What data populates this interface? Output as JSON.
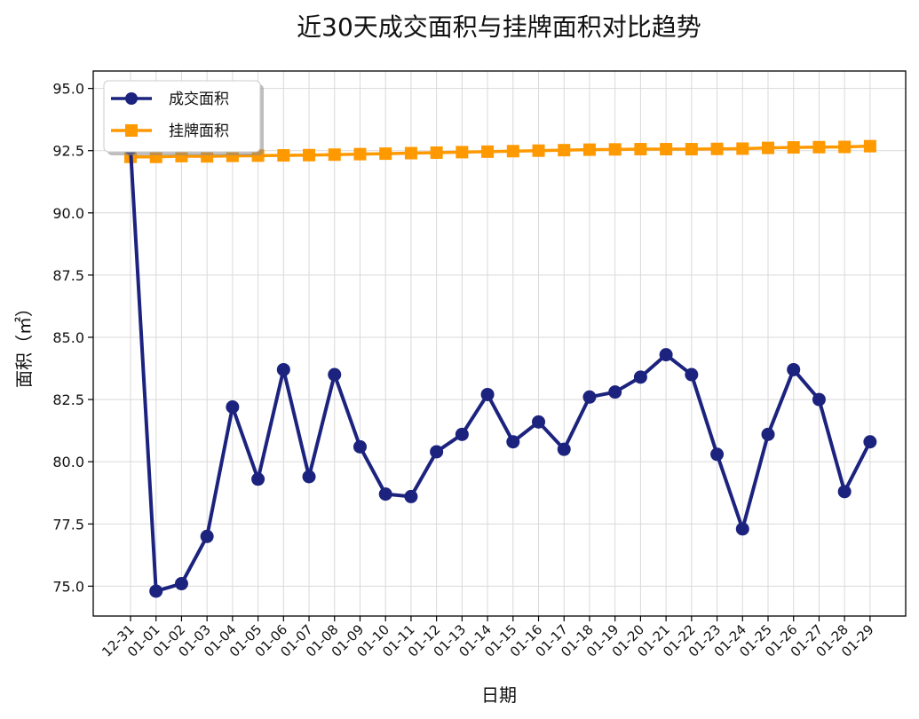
{
  "chart_data": {
    "type": "line",
    "title": "近30天成交面积与挂牌面积对比趋势",
    "xlabel": "日期",
    "ylabel": "面积（㎡）",
    "categories": [
      "12-31",
      "01-01",
      "01-02",
      "01-03",
      "01-04",
      "01-05",
      "01-06",
      "01-07",
      "01-08",
      "01-09",
      "01-10",
      "01-11",
      "01-12",
      "01-13",
      "01-14",
      "01-15",
      "01-16",
      "01-17",
      "01-18",
      "01-19",
      "01-20",
      "01-21",
      "01-22",
      "01-23",
      "01-24",
      "01-25",
      "01-26",
      "01-27",
      "01-28",
      "01-29"
    ],
    "ylim": [
      73.8,
      95.7
    ],
    "yticks": [
      "75.0",
      "77.5",
      "80.0",
      "82.5",
      "85.0",
      "87.5",
      "90.0",
      "92.5",
      "95.0"
    ],
    "grid": true,
    "legend_position": "top-left",
    "series": [
      {
        "name": "成交面积",
        "color": "#1c237e",
        "marker": "circle",
        "values": [
          92.6,
          74.8,
          75.1,
          77.0,
          82.2,
          79.3,
          83.7,
          79.4,
          83.5,
          80.6,
          78.7,
          78.6,
          80.4,
          81.1,
          82.7,
          80.8,
          81.6,
          80.5,
          82.6,
          82.8,
          83.4,
          84.3,
          83.5,
          80.3,
          77.3,
          81.1,
          83.7,
          82.5,
          78.8,
          80.8
        ]
      },
      {
        "name": "挂牌面积",
        "color": "#ff9900",
        "marker": "square",
        "values": [
          92.25,
          92.25,
          92.28,
          92.27,
          92.29,
          92.3,
          92.31,
          92.32,
          92.34,
          92.36,
          92.38,
          92.4,
          92.42,
          92.44,
          92.46,
          92.48,
          92.5,
          92.52,
          92.54,
          92.55,
          92.56,
          92.56,
          92.56,
          92.57,
          92.58,
          92.61,
          92.63,
          92.64,
          92.65,
          92.68
        ]
      }
    ]
  }
}
